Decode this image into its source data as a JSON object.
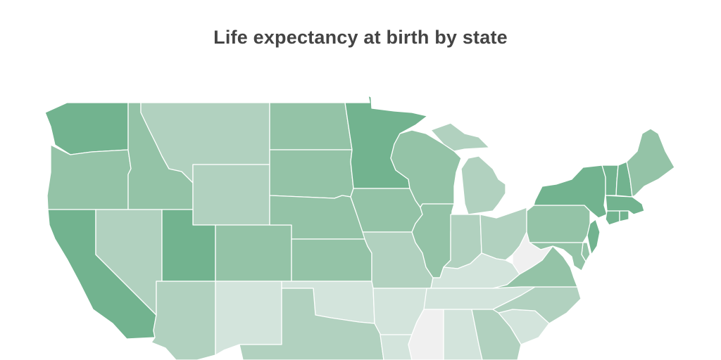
{
  "chart_data": {
    "type": "choropleth",
    "title": "Life expectancy at birth by state",
    "color_scale": [
      "#f0f0f0",
      "#d3e4dc",
      "#b1d1bf",
      "#94c3a7",
      "#72b38f"
    ],
    "states": [
      {
        "name": "Washington",
        "class": 4
      },
      {
        "name": "Oregon",
        "class": 3
      },
      {
        "name": "California",
        "class": 4
      },
      {
        "name": "Idaho",
        "class": 3
      },
      {
        "name": "Nevada",
        "class": 2
      },
      {
        "name": "Montana",
        "class": 2
      },
      {
        "name": "Wyoming",
        "class": 2
      },
      {
        "name": "Utah",
        "class": 4
      },
      {
        "name": "Arizona",
        "class": 2
      },
      {
        "name": "Colorado",
        "class": 3
      },
      {
        "name": "New Mexico",
        "class": 1
      },
      {
        "name": "North Dakota",
        "class": 3
      },
      {
        "name": "South Dakota",
        "class": 3
      },
      {
        "name": "Nebraska",
        "class": 3
      },
      {
        "name": "Kansas",
        "class": 3
      },
      {
        "name": "Oklahoma",
        "class": 1
      },
      {
        "name": "Texas",
        "class": 2
      },
      {
        "name": "Minnesota",
        "class": 4
      },
      {
        "name": "Iowa",
        "class": 3
      },
      {
        "name": "Missouri",
        "class": 2
      },
      {
        "name": "Arkansas",
        "class": 1
      },
      {
        "name": "Louisiana",
        "class": 1
      },
      {
        "name": "Wisconsin",
        "class": 3
      },
      {
        "name": "Illinois",
        "class": 3
      },
      {
        "name": "Michigan",
        "class": 2
      },
      {
        "name": "Indiana",
        "class": 2
      },
      {
        "name": "Ohio",
        "class": 2
      },
      {
        "name": "Kentucky",
        "class": 1
      },
      {
        "name": "Tennessee",
        "class": 1
      },
      {
        "name": "Mississippi",
        "class": 0
      },
      {
        "name": "Alabama",
        "class": 1
      },
      {
        "name": "Georgia",
        "class": 2
      },
      {
        "name": "South Carolina",
        "class": 1
      },
      {
        "name": "North Carolina",
        "class": 2
      },
      {
        "name": "Virginia",
        "class": 3
      },
      {
        "name": "West Virginia",
        "class": 0
      },
      {
        "name": "Pennsylvania",
        "class": 3
      },
      {
        "name": "New York",
        "class": 4
      },
      {
        "name": "Vermont",
        "class": 4
      },
      {
        "name": "New Hampshire",
        "class": 4
      },
      {
        "name": "Maine",
        "class": 3
      },
      {
        "name": "Massachusetts",
        "class": 4
      },
      {
        "name": "Connecticut",
        "class": 4
      },
      {
        "name": "Rhode Island",
        "class": 4
      },
      {
        "name": "New Jersey",
        "class": 4
      },
      {
        "name": "Delaware",
        "class": 3
      },
      {
        "name": "Maryland",
        "class": 3
      }
    ]
  }
}
